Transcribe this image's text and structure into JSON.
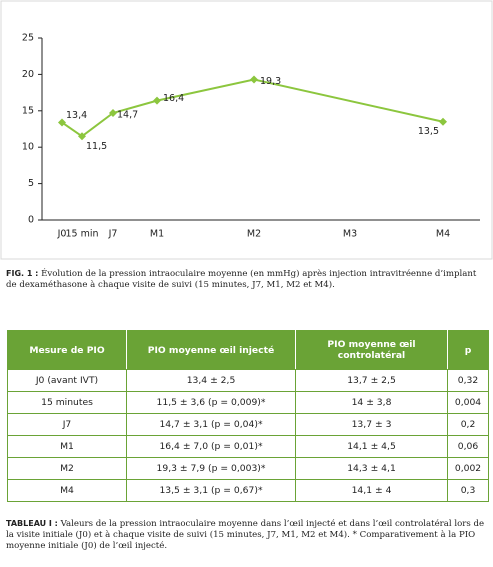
{
  "chart_data": {
    "type": "line",
    "categories": [
      "J0",
      "15 min",
      "J7",
      "M1",
      "M2",
      "M3",
      "M4"
    ],
    "series": [
      {
        "x": [
          "J0",
          "15 min",
          "J7",
          "M1",
          "M2",
          "M4"
        ],
        "values": [
          13.4,
          11.5,
          14.7,
          16.4,
          19.3,
          13.5
        ],
        "value_labels": [
          "13,4",
          "11,5",
          "14,7",
          "16,4",
          "19,3",
          "13,5"
        ],
        "color": "#8cc63e"
      }
    ],
    "ylim": [
      0,
      25
    ],
    "yticks": [
      0,
      5,
      10,
      15,
      20,
      25
    ],
    "grid": false
  },
  "figure_caption": {
    "label": "FIG. 1 :",
    "text": "Évolution de la pression intraoculaire moyenne (en mmHg) après injection intravitréenne d’implant de dexaméthasone à chaque visite de suivi (15 minutes, J7, M1, M2 et M4)."
  },
  "table": {
    "header": [
      "Mesure de PIO",
      "PIO moyenne œil injecté",
      "PIO moyenne œil controlatéral",
      "p"
    ],
    "rows": [
      [
        "J0 (avant IVT)",
        "13,4 ± 2,5",
        "13,7 ± 2,5",
        "0,32"
      ],
      [
        "15 minutes",
        "11,5 ± 3,6 (p = 0,009)*",
        "14 ± 3,8",
        "0,004"
      ],
      [
        "J7",
        "14,7 ± 3,1 (p = 0,04)*",
        "13,7 ± 3",
        "0,2"
      ],
      [
        "M1",
        "16,4 ± 7,0 (p = 0,01)*",
        "14,1 ± 4,5",
        "0,06"
      ],
      [
        "M2",
        "19,3 ± 7,9 (p = 0,003)*",
        "14,3 ± 4,1",
        "0,002"
      ],
      [
        "M4",
        "13,5 ± 3,1 (p = 0,67)*",
        "14,1 ± 4",
        "0,3"
      ]
    ]
  },
  "table_caption": {
    "label": "TABLEAU I :",
    "text": "Valeurs de la pression intraoculaire moyenne dans l’œil injecté et dans l’œil controlatéral lors de la visite initiale (J0) et à chaque visite de suivi (15 minutes, J7, M1, M2 et M4). * Comparativement à la PIO moyenne initiale (J0) de l’œil injecté."
  }
}
